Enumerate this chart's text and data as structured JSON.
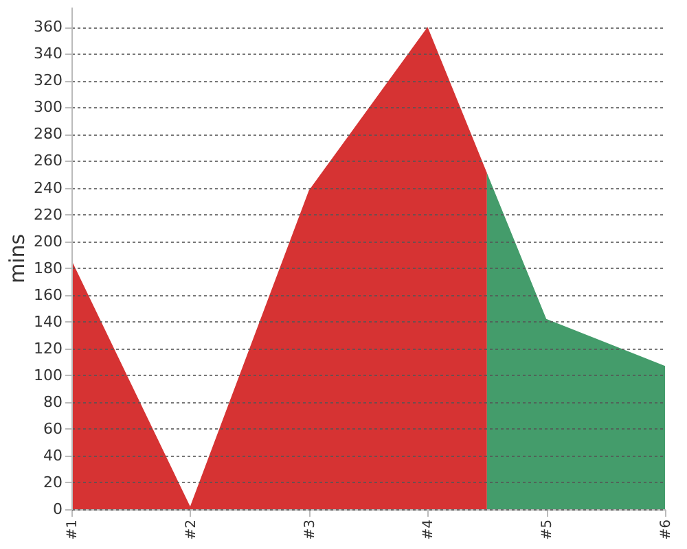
{
  "chart_data": {
    "type": "area",
    "ylabel": "mins",
    "xlim": [
      1,
      6
    ],
    "xticks": [
      {
        "value": 1,
        "label": "#1"
      },
      {
        "value": 2,
        "label": "#2"
      },
      {
        "value": 3,
        "label": "#3"
      },
      {
        "value": 4,
        "label": "#4"
      },
      {
        "value": 5,
        "label": "#5"
      },
      {
        "value": 6,
        "label": "#6"
      }
    ],
    "ylim": [
      0,
      375
    ],
    "yticks": [
      0,
      20,
      40,
      60,
      80,
      100,
      120,
      140,
      160,
      180,
      200,
      220,
      240,
      260,
      280,
      300,
      320,
      340,
      360
    ],
    "grid": "y",
    "series": [
      {
        "color": "#d63333",
        "x": [
          1,
          2,
          3,
          4,
          4.5
        ],
        "values": [
          186,
          2,
          238,
          360,
          251
        ]
      },
      {
        "color": "#449c6b",
        "x": [
          4.5,
          5,
          6
        ],
        "values": [
          251,
          142,
          107
        ]
      }
    ]
  }
}
